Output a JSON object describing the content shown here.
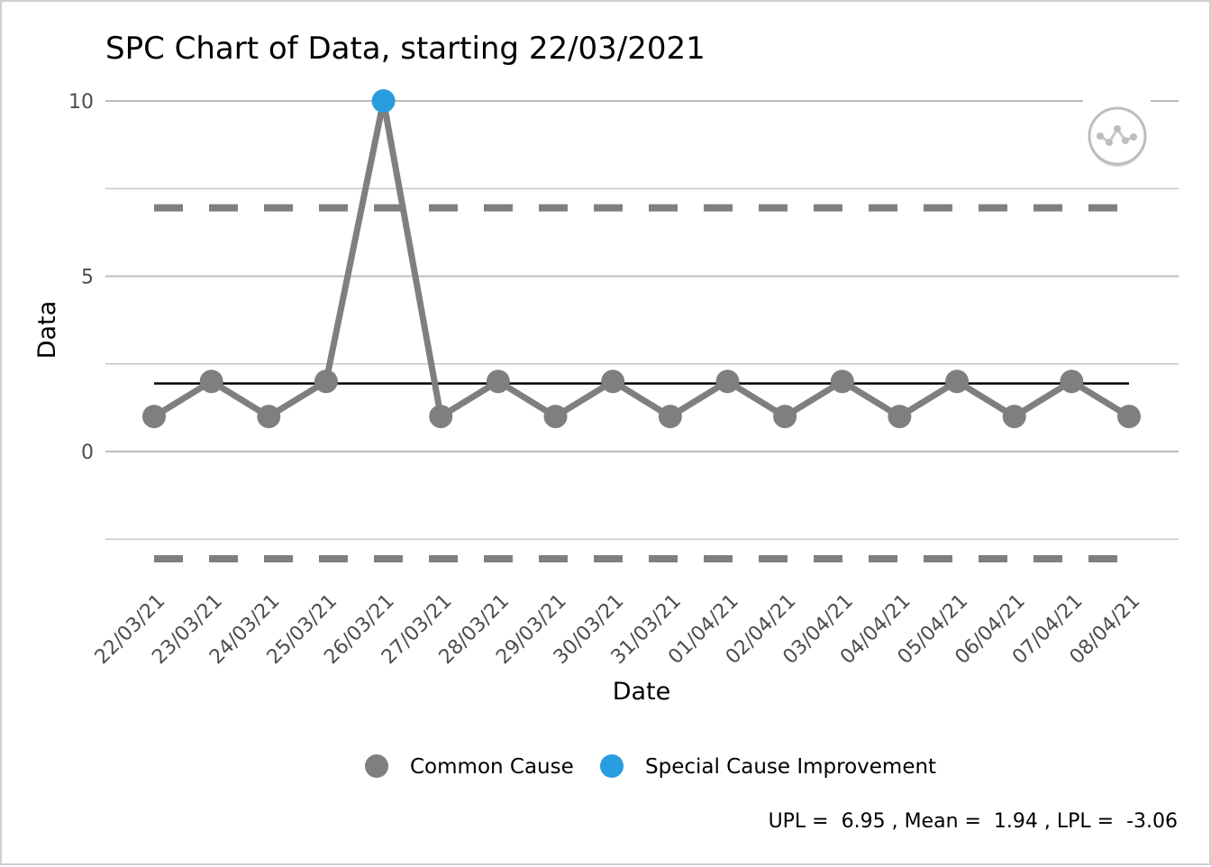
{
  "chart_data": {
    "type": "line",
    "title": "SPC Chart of Data, starting 22/03/2021",
    "xlabel": "Date",
    "ylabel": "Data",
    "x": [
      "22/03/21",
      "23/03/21",
      "24/03/21",
      "25/03/21",
      "26/03/21",
      "27/03/21",
      "28/03/21",
      "29/03/21",
      "30/03/21",
      "31/03/21",
      "01/04/21",
      "02/04/21",
      "03/04/21",
      "04/04/21",
      "05/04/21",
      "06/04/21",
      "07/04/21",
      "08/04/21"
    ],
    "values": [
      1,
      2,
      1,
      2,
      10,
      1,
      2,
      1,
      2,
      1,
      2,
      1,
      2,
      1,
      2,
      1,
      2,
      1
    ],
    "point_class": [
      "Common Cause",
      "Common Cause",
      "Common Cause",
      "Common Cause",
      "Special Cause Improvement",
      "Common Cause",
      "Common Cause",
      "Common Cause",
      "Common Cause",
      "Common Cause",
      "Common Cause",
      "Common Cause",
      "Common Cause",
      "Common Cause",
      "Common Cause",
      "Common Cause",
      "Common Cause",
      "Common Cause"
    ],
    "ylim": [
      -2.5,
      10
    ],
    "yticks": [
      "0",
      "5",
      "10"
    ],
    "upl": 6.95,
    "mean": 1.94,
    "lpl": -3.06,
    "grid": true,
    "legend_position": "bottom",
    "legend": [
      {
        "name": "Common Cause",
        "color": "#7f7f7f"
      },
      {
        "name": "Special Cause Improvement",
        "color": "#289de0"
      }
    ],
    "caption": "UPL =  6.95 , Mean =  1.94 , LPL =  -3.06",
    "icon": "variation-common-cause-icon"
  },
  "colors": {
    "line": "#7f7f7f",
    "common": "#7f7f7f",
    "special_improvement": "#289de0",
    "mean": "#000000",
    "limits": "#7f7f7f",
    "grid": "#bdbdbd"
  }
}
